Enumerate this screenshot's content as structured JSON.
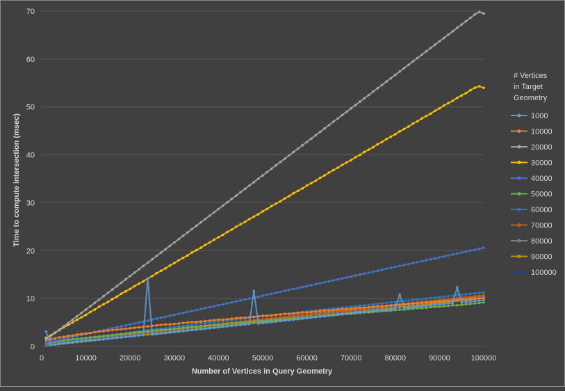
{
  "chart_data": {
    "type": "line",
    "title": "",
    "xlabel": "Number of Vertices in Query Geometry",
    "ylabel": "Time to compute intersection (msec)",
    "xlim": [
      0,
      100000
    ],
    "ylim": [
      0,
      70
    ],
    "x_ticks": [
      "0",
      "10000",
      "20000",
      "30000",
      "40000",
      "50000",
      "60000",
      "70000",
      "80000",
      "90000",
      "100000"
    ],
    "y_ticks": [
      "0",
      "10",
      "20",
      "30",
      "40",
      "50",
      "60",
      "70"
    ],
    "grid": "horizontal",
    "legend_position": "right",
    "legend_title": [
      "# Vertices",
      "in Target",
      "Geometry"
    ],
    "x": [
      1000,
      2000,
      3000,
      4000,
      5000,
      6000,
      7000,
      8000,
      9000,
      10000,
      11000,
      12000,
      13000,
      14000,
      15000,
      16000,
      17000,
      18000,
      19000,
      20000,
      21000,
      22000,
      23000,
      24000,
      25000,
      26000,
      27000,
      28000,
      29000,
      30000,
      31000,
      32000,
      33000,
      34000,
      35000,
      36000,
      37000,
      38000,
      39000,
      40000,
      41000,
      42000,
      43000,
      44000,
      45000,
      46000,
      47000,
      48000,
      49000,
      50000,
      51000,
      52000,
      53000,
      54000,
      55000,
      56000,
      57000,
      58000,
      59000,
      60000,
      61000,
      62000,
      63000,
      64000,
      65000,
      66000,
      67000,
      68000,
      69000,
      70000,
      71000,
      72000,
      73000,
      74000,
      75000,
      76000,
      77000,
      78000,
      79000,
      80000,
      81000,
      82000,
      83000,
      84000,
      85000,
      86000,
      87000,
      88000,
      89000,
      90000,
      91000,
      92000,
      93000,
      94000,
      95000,
      96000,
      97000,
      98000,
      99000,
      100000
    ],
    "series": [
      {
        "name": "1000",
        "color": "#5b9bd5",
        "values": [
          3.1,
          0.5,
          0.4,
          0.6,
          0.7,
          0.8,
          0.9,
          1.0,
          1.1,
          1.2,
          1.3,
          1.3,
          1.4,
          1.5,
          1.6,
          1.7,
          1.8,
          1.9,
          2.0,
          2.1,
          2.2,
          2.3,
          2.4,
          14.2,
          2.5,
          2.6,
          2.7,
          2.8,
          2.9,
          3.0,
          3.1,
          3.2,
          3.3,
          3.4,
          3.5,
          3.6,
          3.7,
          3.8,
          3.9,
          4.0,
          4.1,
          4.2,
          4.3,
          4.4,
          4.5,
          4.6,
          4.7,
          11.6,
          4.8,
          4.9,
          5.0,
          5.1,
          5.2,
          5.3,
          5.4,
          5.5,
          5.6,
          5.7,
          5.8,
          5.9,
          6.0,
          6.1,
          6.2,
          6.3,
          6.4,
          6.5,
          6.6,
          6.7,
          6.8,
          6.9,
          7.0,
          7.1,
          7.2,
          7.3,
          7.4,
          7.5,
          7.6,
          7.7,
          7.8,
          7.9,
          10.8,
          8.0,
          8.1,
          8.2,
          8.3,
          8.4,
          8.5,
          8.6,
          8.7,
          8.8,
          8.9,
          9.0,
          9.1,
          12.3,
          9.2,
          9.3,
          9.4,
          9.5,
          9.6,
          9.7
        ]
      },
      {
        "name": "10000",
        "color": "#ed7d31",
        "values": [
          1.3,
          1.5,
          1.7,
          1.9,
          2.0,
          2.2,
          2.3,
          2.5,
          2.6,
          2.7,
          2.8,
          3.0,
          3.1,
          3.2,
          3.3,
          3.4,
          3.5,
          3.6,
          3.7,
          3.8,
          3.9,
          4.0,
          4.1,
          4.2,
          4.3,
          4.4,
          4.5,
          4.6,
          4.6,
          4.7,
          4.8,
          4.9,
          5.0,
          5.1,
          5.1,
          5.2,
          5.3,
          5.4,
          5.5,
          5.6,
          5.6,
          5.7,
          5.8,
          5.9,
          6.0,
          6.0,
          6.1,
          6.2,
          6.3,
          6.4,
          6.4,
          6.5,
          6.6,
          6.7,
          6.8,
          6.8,
          6.9,
          7.0,
          7.1,
          7.1,
          7.2,
          7.3,
          7.4,
          7.5,
          7.5,
          7.6,
          7.7,
          7.8,
          7.8,
          7.9,
          8.0,
          8.1,
          8.1,
          8.2,
          8.3,
          8.4,
          8.4,
          8.5,
          8.6,
          8.7,
          8.7,
          8.8,
          8.9,
          9.0,
          9.0,
          9.1,
          9.2,
          9.2,
          9.3,
          9.4,
          9.5,
          9.5,
          9.6,
          9.7,
          9.8,
          9.8,
          9.9,
          10.0,
          10.0,
          10.1
        ]
      },
      {
        "name": "20000",
        "color": "#a5a5a5",
        "values": [
          1.5,
          2.1,
          2.8,
          3.5,
          4.2,
          4.9,
          5.6,
          6.3,
          7.0,
          7.7,
          8.4,
          9.1,
          9.8,
          10.5,
          11.2,
          11.9,
          12.6,
          13.3,
          14.0,
          14.7,
          15.4,
          16.1,
          16.8,
          17.5,
          18.2,
          18.9,
          19.6,
          20.3,
          21.0,
          21.7,
          22.4,
          23.1,
          23.8,
          24.5,
          25.2,
          25.9,
          26.6,
          27.3,
          28.0,
          28.7,
          29.4,
          30.1,
          30.8,
          31.5,
          32.2,
          32.9,
          33.6,
          34.3,
          35.0,
          35.7,
          36.4,
          37.1,
          37.8,
          38.5,
          39.2,
          39.9,
          40.6,
          41.3,
          42.0,
          42.7,
          43.4,
          44.1,
          44.8,
          45.5,
          46.2,
          46.9,
          47.6,
          48.3,
          49.0,
          49.7,
          50.4,
          51.1,
          51.8,
          52.5,
          53.2,
          53.9,
          54.6,
          55.3,
          56.0,
          56.7,
          57.4,
          58.1,
          58.8,
          59.5,
          60.2,
          60.9,
          61.6,
          62.3,
          63.0,
          63.7,
          64.4,
          65.1,
          65.8,
          66.5,
          67.2,
          67.9,
          68.6,
          69.3,
          69.8,
          69.5
        ]
      },
      {
        "name": "30000",
        "color": "#ffc000",
        "values": [
          1.8,
          2.3,
          2.9,
          3.4,
          4.0,
          4.5,
          5.0,
          5.6,
          6.1,
          6.6,
          7.2,
          7.7,
          8.3,
          8.8,
          9.3,
          9.9,
          10.4,
          11.0,
          11.5,
          12.0,
          12.6,
          13.1,
          13.6,
          14.2,
          14.7,
          15.3,
          15.8,
          16.3,
          16.9,
          17.4,
          18.0,
          18.5,
          19.0,
          19.6,
          20.1,
          20.6,
          21.2,
          21.7,
          22.3,
          22.8,
          23.3,
          23.9,
          24.4,
          25.0,
          25.5,
          26.0,
          26.6,
          27.1,
          27.6,
          28.2,
          28.7,
          29.3,
          29.8,
          30.3,
          30.9,
          31.4,
          32.0,
          32.5,
          33.0,
          33.6,
          34.1,
          34.6,
          35.2,
          35.7,
          36.3,
          36.8,
          37.3,
          37.9,
          38.4,
          38.9,
          39.5,
          40.0,
          40.6,
          41.1,
          41.6,
          42.2,
          42.7,
          43.3,
          43.8,
          44.3,
          44.9,
          45.4,
          45.9,
          46.5,
          47.0,
          47.6,
          48.1,
          48.6,
          49.2,
          49.7,
          50.3,
          50.8,
          51.3,
          51.9,
          52.4,
          52.9,
          53.5,
          54.0,
          54.3,
          54.0
        ]
      },
      {
        "name": "40000",
        "color": "#4472c4",
        "values": [
          0.8,
          1.0,
          1.2,
          1.4,
          1.6,
          1.8,
          2.0,
          2.2,
          2.4,
          2.6,
          2.8,
          3.0,
          3.2,
          3.4,
          3.6,
          3.8,
          4.0,
          4.2,
          4.4,
          4.6,
          4.8,
          5.0,
          5.2,
          5.4,
          5.6,
          5.8,
          6.0,
          6.2,
          6.4,
          6.6,
          6.8,
          7.0,
          7.2,
          7.4,
          7.6,
          7.8,
          8.0,
          8.2,
          8.4,
          8.6,
          8.8,
          9.0,
          9.2,
          9.4,
          9.6,
          9.8,
          10.0,
          10.2,
          10.4,
          10.6,
          10.8,
          11.0,
          11.2,
          11.4,
          11.6,
          11.8,
          12.0,
          12.2,
          12.4,
          12.6,
          12.8,
          13.0,
          13.2,
          13.4,
          13.6,
          13.8,
          14.0,
          14.2,
          14.4,
          14.6,
          14.8,
          15.0,
          15.2,
          15.4,
          15.6,
          15.8,
          16.0,
          16.2,
          16.4,
          16.6,
          16.8,
          17.0,
          17.2,
          17.4,
          17.6,
          17.8,
          18.0,
          18.2,
          18.4,
          18.6,
          18.8,
          19.0,
          19.2,
          19.4,
          19.6,
          19.8,
          20.0,
          20.2,
          20.4,
          20.6
        ]
      },
      {
        "name": "50000",
        "color": "#70ad47",
        "values": [
          0.7,
          0.9,
          1.0,
          1.1,
          1.3,
          1.4,
          1.5,
          1.6,
          1.7,
          1.8,
          1.9,
          2.0,
          2.1,
          2.2,
          2.3,
          2.4,
          2.5,
          2.6,
          2.7,
          2.8,
          2.9,
          3.0,
          3.1,
          3.2,
          3.3,
          3.4,
          3.5,
          3.5,
          3.6,
          3.7,
          3.8,
          3.9,
          4.0,
          4.1,
          4.1,
          4.2,
          4.3,
          4.4,
          4.5,
          4.5,
          4.6,
          4.7,
          4.8,
          4.9,
          4.9,
          5.0,
          5.1,
          5.2,
          5.3,
          5.3,
          5.4,
          5.5,
          5.6,
          5.6,
          5.7,
          5.8,
          5.9,
          5.9,
          6.0,
          6.1,
          6.2,
          6.2,
          6.3,
          6.4,
          6.5,
          6.5,
          6.6,
          6.7,
          6.8,
          6.8,
          6.9,
          7.0,
          7.1,
          7.1,
          7.2,
          7.3,
          7.4,
          7.4,
          7.5,
          7.6,
          7.7,
          7.7,
          7.8,
          7.9,
          8.0,
          8.0,
          8.1,
          8.2,
          8.3,
          8.3,
          8.4,
          8.5,
          8.6,
          8.6,
          8.7,
          8.8,
          8.9,
          9.0,
          9.1,
          9.2
        ]
      },
      {
        "name": "60000",
        "color": "#2e75b6",
        "values": [
          0.3,
          0.5,
          0.6,
          0.8,
          0.9,
          1.0,
          1.2,
          1.3,
          1.5,
          1.6,
          1.7,
          1.9,
          2.0,
          2.1,
          2.2,
          2.4,
          2.5,
          2.6,
          2.7,
          2.9,
          3.0,
          3.1,
          3.2,
          3.4,
          3.5,
          3.6,
          3.7,
          3.8,
          4.0,
          4.1,
          4.2,
          4.3,
          4.4,
          4.5,
          4.7,
          4.8,
          4.9,
          5.0,
          5.1,
          5.2,
          5.3,
          5.4,
          5.5,
          5.6,
          5.7,
          5.8,
          6.0,
          6.1,
          6.2,
          6.3,
          6.4,
          6.5,
          6.6,
          6.7,
          6.8,
          6.9,
          7.0,
          7.1,
          7.2,
          7.3,
          7.4,
          7.5,
          7.6,
          7.7,
          7.8,
          7.9,
          8.0,
          8.1,
          8.2,
          8.3,
          8.4,
          8.5,
          8.6,
          8.7,
          8.8,
          8.9,
          9.0,
          9.1,
          9.2,
          9.3,
          9.4,
          9.5,
          9.6,
          9.7,
          9.8,
          9.9,
          10.0,
          10.1,
          10.2,
          10.3,
          10.4,
          10.5,
          10.6,
          10.7,
          10.8,
          10.9,
          11.0,
          11.1,
          11.2,
          11.3
        ]
      },
      {
        "name": "70000",
        "color": "#c55a11",
        "values": [
          0.5,
          0.6,
          0.8,
          0.9,
          1.0,
          1.2,
          1.3,
          1.4,
          1.5,
          1.6,
          1.8,
          1.9,
          2.0,
          2.1,
          2.2,
          2.3,
          2.4,
          2.5,
          2.6,
          2.7,
          2.8,
          2.9,
          3.0,
          3.1,
          3.2,
          3.3,
          3.4,
          3.5,
          3.6,
          3.7,
          3.8,
          3.9,
          4.0,
          4.1,
          4.2,
          4.3,
          4.4,
          4.5,
          4.6,
          4.7,
          4.8,
          4.9,
          5.0,
          5.1,
          5.2,
          5.3,
          5.4,
          5.5,
          5.6,
          5.7,
          5.8,
          5.9,
          6.0,
          6.1,
          6.2,
          6.3,
          6.4,
          6.5,
          6.6,
          6.7,
          6.8,
          6.9,
          7.0,
          7.1,
          7.2,
          7.3,
          7.4,
          7.5,
          7.6,
          7.7,
          7.8,
          7.9,
          8.0,
          8.1,
          8.2,
          8.3,
          8.4,
          8.5,
          8.6,
          8.7,
          8.8,
          8.9,
          9.0,
          9.1,
          9.2,
          9.3,
          9.4,
          9.5,
          9.6,
          9.7,
          9.8,
          9.9,
          10.0,
          10.1,
          10.2,
          10.3,
          10.4,
          10.5,
          10.6,
          10.7
        ]
      },
      {
        "name": "80000",
        "color": "#7f7f7f",
        "values": [
          0.4,
          0.5,
          0.7,
          0.8,
          0.9,
          1.0,
          1.2,
          1.3,
          1.4,
          1.5,
          1.6,
          1.7,
          1.8,
          1.9,
          2.0,
          2.1,
          2.2,
          2.3,
          2.4,
          2.5,
          2.6,
          2.7,
          2.8,
          2.9,
          3.0,
          3.1,
          3.2,
          3.3,
          3.4,
          3.5,
          3.6,
          3.7,
          3.8,
          3.9,
          4.0,
          4.1,
          4.2,
          4.3,
          4.4,
          4.5,
          4.6,
          4.7,
          4.8,
          4.9,
          5.0,
          5.1,
          5.2,
          5.3,
          5.4,
          5.5,
          5.6,
          5.7,
          5.8,
          5.9,
          6.0,
          6.1,
          6.2,
          6.3,
          6.4,
          6.5,
          6.6,
          6.7,
          6.8,
          6.9,
          7.0,
          7.1,
          7.2,
          7.3,
          7.4,
          7.5,
          7.6,
          7.7,
          7.8,
          7.9,
          8.0,
          8.1,
          8.2,
          8.3,
          8.4,
          8.5,
          8.6,
          8.7,
          8.8,
          8.9,
          9.0,
          9.1,
          9.2,
          9.3,
          9.4,
          9.5,
          9.6,
          9.7,
          9.8,
          9.9,
          10.0,
          10.1,
          10.2,
          10.3,
          10.4,
          10.5
        ]
      },
      {
        "name": "90000",
        "color": "#bf9000",
        "values": [
          0.2,
          0.3,
          0.4,
          0.5,
          0.6,
          0.7,
          0.8,
          0.9,
          1.0,
          1.1,
          1.2,
          1.3,
          1.4,
          1.5,
          1.6,
          1.7,
          1.8,
          1.9,
          2.0,
          2.1,
          2.2,
          2.3,
          2.4,
          2.5,
          2.6,
          2.7,
          2.8,
          2.9,
          3.0,
          3.1,
          3.2,
          3.3,
          3.4,
          3.5,
          3.6,
          3.7,
          3.8,
          3.9,
          4.0,
          4.1,
          4.2,
          4.3,
          4.4,
          4.5,
          4.6,
          4.7,
          4.8,
          4.9,
          5.0,
          5.1,
          5.2,
          5.3,
          5.4,
          5.5,
          5.6,
          5.7,
          5.8,
          5.9,
          6.0,
          6.1,
          6.2,
          6.3,
          6.4,
          6.5,
          6.6,
          6.7,
          6.8,
          6.9,
          7.0,
          7.1,
          7.2,
          7.3,
          7.4,
          7.5,
          7.6,
          7.7,
          7.8,
          7.9,
          8.0,
          8.1,
          8.2,
          8.3,
          8.4,
          8.5,
          8.6,
          8.7,
          8.8,
          8.9,
          9.0,
          9.1,
          9.2,
          9.3,
          9.4,
          9.5,
          9.6,
          9.7,
          9.8,
          9.9,
          10.0,
          10.1
        ]
      },
      {
        "name": "100000",
        "color": "#264478",
        "values": [
          0.1,
          0.2,
          0.3,
          0.4,
          0.5,
          0.6,
          0.7,
          0.8,
          0.9,
          1.0,
          1.1,
          1.2,
          1.3,
          1.4,
          1.5,
          1.6,
          1.7,
          1.8,
          1.9,
          2.0,
          2.1,
          2.2,
          2.3,
          2.4,
          2.5,
          2.6,
          2.7,
          2.8,
          2.9,
          3.0,
          3.1,
          3.2,
          3.3,
          3.4,
          3.5,
          3.6,
          3.7,
          3.8,
          3.9,
          4.0,
          4.1,
          4.2,
          4.3,
          4.4,
          4.5,
          4.6,
          4.7,
          4.8,
          4.9,
          5.0,
          5.1,
          5.2,
          5.3,
          5.4,
          5.5,
          5.6,
          5.7,
          5.8,
          5.9,
          6.0,
          6.1,
          6.2,
          6.3,
          6.4,
          6.5,
          6.6,
          6.7,
          6.8,
          6.9,
          7.0,
          7.1,
          7.2,
          7.3,
          7.4,
          7.5,
          7.6,
          7.7,
          7.8,
          7.9,
          8.0,
          8.1,
          8.2,
          8.3,
          8.4,
          8.5,
          8.6,
          8.7,
          8.8,
          8.9,
          9.0,
          9.1,
          9.2,
          9.3,
          9.4,
          9.5,
          9.6,
          9.7,
          9.8,
          9.9,
          10.0
        ]
      }
    ]
  }
}
